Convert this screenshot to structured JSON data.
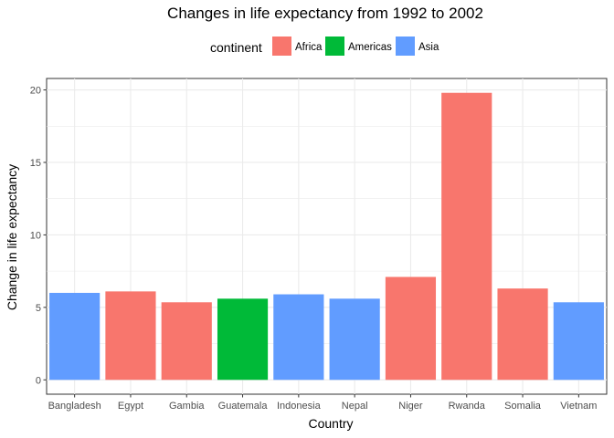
{
  "chart_data": {
    "type": "bar",
    "title": "Changes in life expectancy from 1992 to 2002",
    "xlabel": "Country",
    "ylabel": "Change in life expectancy",
    "categories": [
      "Bangladesh",
      "Egypt",
      "Gambia",
      "Guatemala",
      "Indonesia",
      "Nepal",
      "Niger",
      "Rwanda",
      "Somalia",
      "Vietnam"
    ],
    "values": [
      6.0,
      6.1,
      5.35,
      5.6,
      5.9,
      5.6,
      7.1,
      19.8,
      6.3,
      5.35
    ],
    "groups": [
      "Asia",
      "Africa",
      "Africa",
      "Americas",
      "Asia",
      "Asia",
      "Africa",
      "Africa",
      "Africa",
      "Asia"
    ],
    "ylim": [
      -0.99,
      20.79
    ],
    "yticks": [
      0,
      5,
      10,
      15,
      20
    ],
    "grid": true,
    "legend": {
      "title": "continent",
      "position": "top",
      "entries": [
        {
          "label": "Africa",
          "color": "#F8766D"
        },
        {
          "label": "Americas",
          "color": "#00BA38"
        },
        {
          "label": "Asia",
          "color": "#619CFF"
        }
      ]
    }
  }
}
